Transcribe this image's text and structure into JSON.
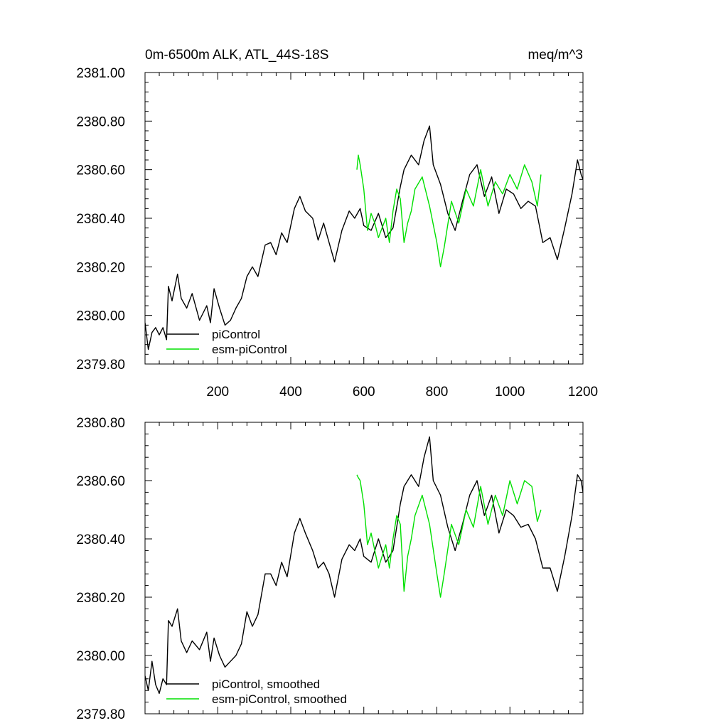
{
  "figure": {
    "title_left": "0m-6500m ALK, ATL_44S-18S",
    "title_right": "meq/m^3"
  },
  "chart_data": [
    {
      "type": "line",
      "title": "0m-6500m ALK, ATL_44S-18S",
      "units": "meq/m^3",
      "xlim": [
        1,
        1200
      ],
      "ylim": [
        2379.8,
        2381.0
      ],
      "xticks": [
        200,
        400,
        600,
        800,
        1000,
        1200
      ],
      "xtick_labels": [
        "200",
        "400",
        "600",
        "800",
        "1000",
        "1200"
      ],
      "yticks": [
        2379.8,
        2380.0,
        2380.2,
        2380.4,
        2380.6,
        2380.8,
        2381.0
      ],
      "ytick_labels": [
        "2379.80",
        "2380.00",
        "2380.20",
        "2380.40",
        "2380.60",
        "2380.80",
        "2381.00"
      ],
      "legend_position": "bottom-left",
      "series": [
        {
          "name": "piControl",
          "color": "#000000",
          "x": [
            1,
            10,
            20,
            30,
            40,
            50,
            60,
            65,
            75,
            90,
            100,
            115,
            130,
            150,
            170,
            180,
            190,
            205,
            220,
            235,
            250,
            265,
            280,
            295,
            310,
            330,
            345,
            360,
            375,
            390,
            410,
            425,
            440,
            460,
            475,
            490,
            505,
            520,
            540,
            560,
            575,
            590,
            600,
            620,
            640,
            660,
            680,
            700,
            710,
            730,
            750,
            765,
            780,
            790,
            810,
            830,
            850,
            870,
            890,
            910,
            930,
            950,
            970,
            990,
            1010,
            1030,
            1050,
            1070,
            1090,
            1110,
            1130,
            1150,
            1170,
            1185,
            1195,
            1200
          ],
          "values": [
            2379.97,
            2379.86,
            2379.93,
            2379.95,
            2379.92,
            2379.95,
            2379.9,
            2380.12,
            2380.06,
            2380.17,
            2380.07,
            2380.03,
            2380.09,
            2379.98,
            2380.04,
            2379.97,
            2380.11,
            2380.03,
            2379.96,
            2379.98,
            2380.03,
            2380.07,
            2380.16,
            2380.2,
            2380.16,
            2380.29,
            2380.3,
            2380.25,
            2380.34,
            2380.3,
            2380.44,
            2380.49,
            2380.43,
            2380.4,
            2380.31,
            2380.38,
            2380.3,
            2380.22,
            2380.35,
            2380.43,
            2380.4,
            2380.44,
            2380.37,
            2380.35,
            2380.42,
            2380.32,
            2380.36,
            2380.53,
            2380.6,
            2380.66,
            2380.62,
            2380.72,
            2380.78,
            2380.62,
            2380.54,
            2380.42,
            2380.35,
            2380.47,
            2380.58,
            2380.62,
            2380.49,
            2380.57,
            2380.42,
            2380.52,
            2380.5,
            2380.44,
            2380.47,
            2380.45,
            2380.3,
            2380.32,
            2380.23,
            2380.36,
            2380.5,
            2380.64,
            2380.58,
            2380.56
          ]
        },
        {
          "name": "esm-piControl",
          "color": "#00e000",
          "x": [
            581,
            585,
            590,
            600,
            610,
            620,
            630,
            640,
            650,
            660,
            670,
            680,
            690,
            700,
            710,
            720,
            730,
            740,
            760,
            780,
            800,
            810,
            820,
            840,
            860,
            880,
            900,
            920,
            940,
            960,
            980,
            1000,
            1020,
            1040,
            1060,
            1075,
            1085
          ],
          "values": [
            2380.6,
            2380.66,
            2380.62,
            2380.52,
            2380.35,
            2380.42,
            2380.38,
            2380.32,
            2380.36,
            2380.4,
            2380.3,
            2380.43,
            2380.52,
            2380.48,
            2380.3,
            2380.38,
            2380.43,
            2380.52,
            2380.57,
            2380.45,
            2380.3,
            2380.2,
            2380.28,
            2380.47,
            2380.38,
            2380.52,
            2380.45,
            2380.6,
            2380.45,
            2380.55,
            2380.5,
            2380.58,
            2380.52,
            2380.62,
            2380.55,
            2380.45,
            2380.58
          ]
        }
      ]
    },
    {
      "type": "line",
      "xlim": [
        1,
        1200
      ],
      "ylim": [
        2379.8,
        2380.8
      ],
      "xticks": [
        200,
        400,
        600,
        800,
        1000,
        1200
      ],
      "yticks": [
        2379.8,
        2380.0,
        2380.2,
        2380.4,
        2380.6,
        2380.8
      ],
      "ytick_labels": [
        "2379.80",
        "2380.00",
        "2380.20",
        "2380.40",
        "2380.60",
        "2380.80"
      ],
      "legend_position": "bottom-left",
      "series": [
        {
          "name": "piControl, smoothed",
          "color": "#000000",
          "x": [
            1,
            10,
            20,
            30,
            40,
            50,
            60,
            65,
            75,
            90,
            100,
            115,
            130,
            150,
            170,
            180,
            190,
            205,
            220,
            235,
            250,
            265,
            280,
            295,
            310,
            330,
            345,
            360,
            375,
            390,
            410,
            425,
            440,
            460,
            475,
            490,
            505,
            520,
            540,
            560,
            575,
            590,
            600,
            620,
            640,
            660,
            680,
            700,
            710,
            730,
            750,
            765,
            780,
            790,
            810,
            830,
            850,
            870,
            890,
            910,
            930,
            950,
            970,
            990,
            1010,
            1030,
            1050,
            1070,
            1090,
            1110,
            1130,
            1150,
            1170,
            1185,
            1195,
            1200
          ],
          "values": [
            2379.93,
            2379.88,
            2379.98,
            2379.9,
            2379.87,
            2379.92,
            2379.9,
            2380.12,
            2380.1,
            2380.16,
            2380.05,
            2380.01,
            2380.05,
            2380.02,
            2380.08,
            2379.98,
            2380.06,
            2380.0,
            2379.96,
            2379.98,
            2380.0,
            2380.04,
            2380.15,
            2380.1,
            2380.14,
            2380.28,
            2380.28,
            2380.24,
            2380.32,
            2380.27,
            2380.42,
            2380.47,
            2380.42,
            2380.36,
            2380.3,
            2380.32,
            2380.28,
            2380.2,
            2380.33,
            2380.38,
            2380.36,
            2380.4,
            2380.34,
            2380.32,
            2380.4,
            2380.32,
            2380.36,
            2380.52,
            2380.58,
            2380.62,
            2380.58,
            2380.68,
            2380.75,
            2380.6,
            2380.55,
            2380.44,
            2380.36,
            2380.45,
            2380.55,
            2380.6,
            2380.48,
            2380.55,
            2380.42,
            2380.5,
            2380.48,
            2380.44,
            2380.45,
            2380.4,
            2380.3,
            2380.3,
            2380.22,
            2380.34,
            2380.48,
            2380.62,
            2380.6,
            2380.56
          ]
        },
        {
          "name": "esm-piControl, smoothed",
          "color": "#00e000",
          "x": [
            581,
            585,
            590,
            600,
            610,
            620,
            630,
            640,
            650,
            660,
            670,
            680,
            690,
            700,
            710,
            720,
            730,
            740,
            760,
            780,
            800,
            810,
            820,
            840,
            860,
            880,
            900,
            920,
            940,
            960,
            980,
            1000,
            1020,
            1040,
            1060,
            1075,
            1085
          ],
          "values": [
            2380.62,
            2380.61,
            2380.6,
            2380.52,
            2380.38,
            2380.42,
            2380.36,
            2380.3,
            2380.34,
            2380.38,
            2380.3,
            2380.4,
            2380.48,
            2380.45,
            2380.22,
            2380.34,
            2380.4,
            2380.48,
            2380.55,
            2380.45,
            2380.28,
            2380.2,
            2380.28,
            2380.45,
            2380.38,
            2380.5,
            2380.44,
            2380.58,
            2380.45,
            2380.55,
            2380.48,
            2380.6,
            2380.52,
            2380.6,
            2380.58,
            2380.46,
            2380.5
          ]
        }
      ]
    }
  ]
}
